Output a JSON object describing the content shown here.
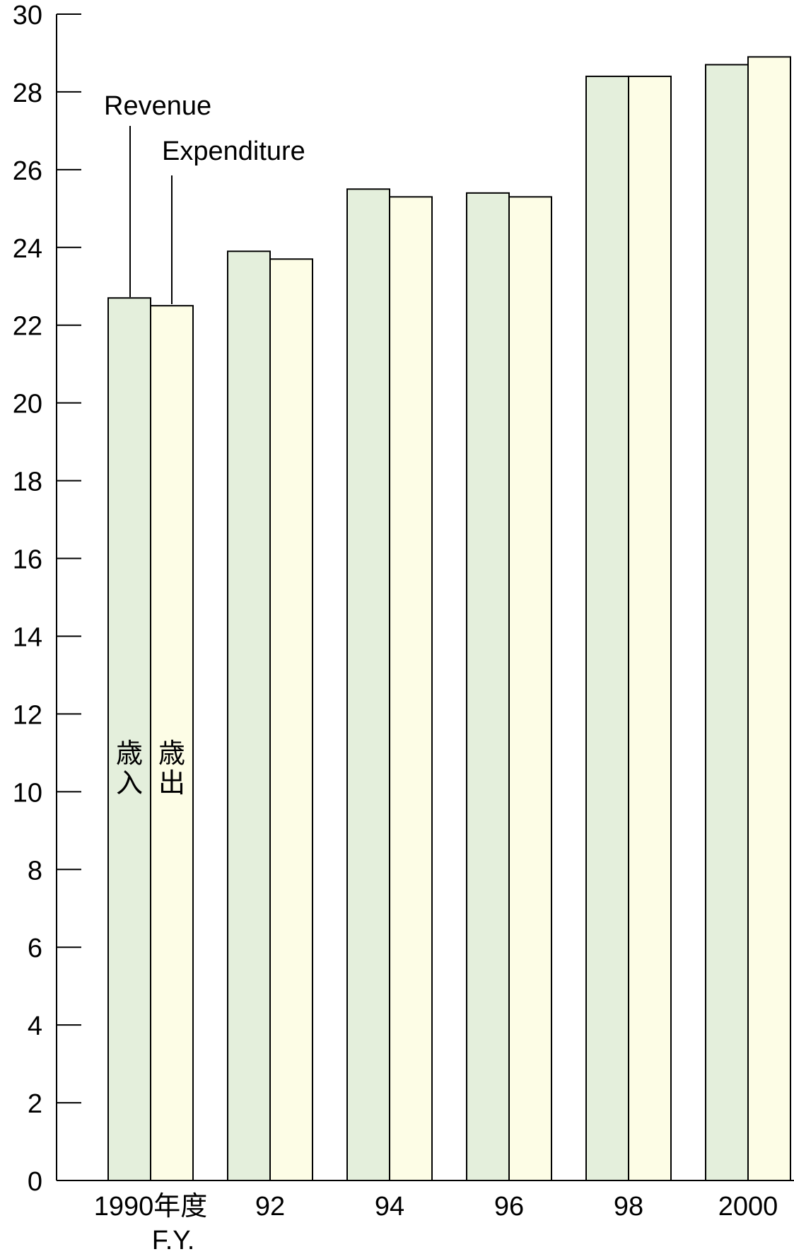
{
  "chart_data": {
    "type": "bar",
    "categories": [
      "1990年度",
      "92",
      "94",
      "96",
      "98",
      "2000"
    ],
    "unit_label": "F.Y.",
    "series": [
      {
        "name": "Revenue",
        "jp_name": "歳入",
        "color": "#e4efdc",
        "values": [
          22.7,
          23.9,
          25.5,
          25.4,
          28.4,
          28.7
        ]
      },
      {
        "name": "Expenditure",
        "jp_name": "歳出",
        "color": "#fdfde6",
        "values": [
          22.5,
          23.7,
          25.3,
          25.3,
          28.4,
          28.9
        ]
      }
    ],
    "ylim": [
      0,
      30
    ],
    "yticks": [
      "0",
      "2",
      "4",
      "6",
      "8",
      "10",
      "12",
      "14",
      "16",
      "18",
      "20",
      "22",
      "24",
      "26",
      "28",
      "30"
    ],
    "grid": false,
    "title": "",
    "xlabel": "",
    "ylabel": ""
  }
}
